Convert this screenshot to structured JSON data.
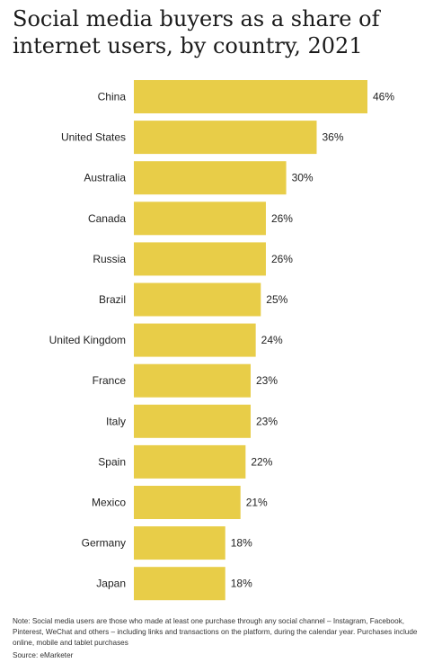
{
  "title_line1": "Social media buyers as a share of",
  "title_line2": "internet users, by country, 2021",
  "note": "Note: Social media users are those who made at least one purchase through any social channel – Instagram, Facebook, Pinterest, WeChat and others – including links and transactions on the platform, during the calendar year. Purchases include online, mobile and tablet purchases",
  "source": "Source: eMarketer",
  "bar_color": "#e8cd48",
  "chart_data": {
    "type": "bar",
    "orientation": "horizontal",
    "title": "Social media buyers as a share of internet users, by country, 2021",
    "categories": [
      "China",
      "United States",
      "Australia",
      "Canada",
      "Russia",
      "Brazil",
      "United Kingdom",
      "France",
      "Italy",
      "Spain",
      "Mexico",
      "Germany",
      "Japan"
    ],
    "values": [
      46,
      36,
      30,
      26,
      26,
      25,
      24,
      23,
      23,
      22,
      21,
      18,
      18
    ],
    "labels": [
      "46%",
      "36%",
      "30%",
      "26%",
      "26%",
      "25%",
      "24%",
      "23%",
      "23%",
      "22%",
      "21%",
      "18%",
      "18%"
    ],
    "unit": "%",
    "xlim": [
      0,
      46
    ],
    "grid": false,
    "legend": "none"
  }
}
